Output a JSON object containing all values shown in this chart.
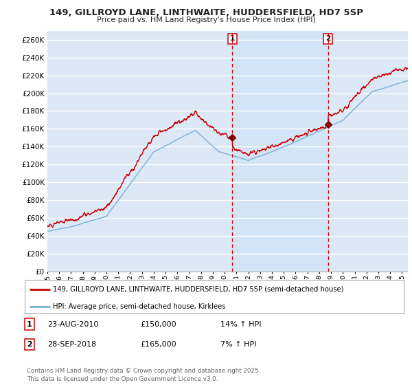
{
  "title_line1": "149, GILLROYD LANE, LINTHWAITE, HUDDERSFIELD, HD7 5SP",
  "title_line2": "Price paid vs. HM Land Registry's House Price Index (HPI)",
  "ylabel_ticks": [
    0,
    20000,
    40000,
    60000,
    80000,
    100000,
    120000,
    140000,
    160000,
    180000,
    200000,
    220000,
    240000,
    260000
  ],
  "ylim": [
    0,
    270000
  ],
  "xlim_start": 1995.0,
  "xlim_end": 2025.5,
  "sale1_x": 2010.645,
  "sale1_y": 150000,
  "sale1_label": "1",
  "sale1_date": "23-AUG-2010",
  "sale1_price": "£150,000",
  "sale1_hpi": "14% ↑ HPI",
  "sale2_x": 2018.745,
  "sale2_y": 165000,
  "sale2_label": "2",
  "sale2_date": "28-SEP-2018",
  "sale2_price": "£165,000",
  "sale2_hpi": "7% ↑ HPI",
  "legend_line1": "149, GILLROYD LANE, LINTHWAITE, HUDDERSFIELD, HD7 5SP (semi-detached house)",
  "legend_line2": "HPI: Average price, semi-detached house, Kirklees",
  "footer": "Contains HM Land Registry data © Crown copyright and database right 2025.\nThis data is licensed under the Open Government Licence v3.0.",
  "line_color_red": "#cc0000",
  "line_color_blue": "#7aafd4",
  "background_color": "#dce8f5",
  "grid_color": "#ffffff",
  "vline_color": "#cc0000",
  "shade_color": "#d0e4f5"
}
